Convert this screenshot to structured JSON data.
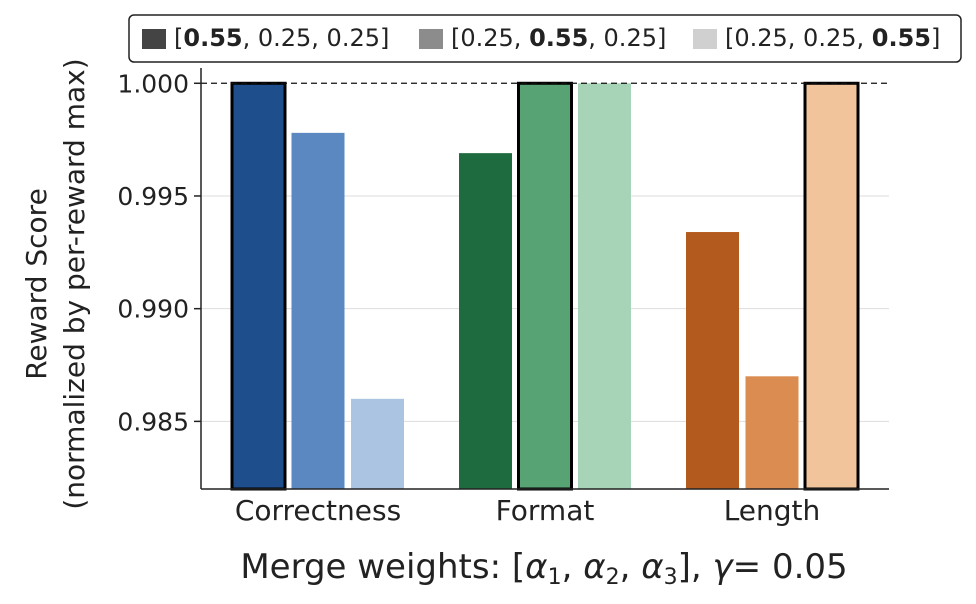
{
  "chart_data": {
    "type": "bar",
    "categories": [
      "Correctness",
      "Format",
      "Length"
    ],
    "ylabel_line1": "Reward Score",
    "ylabel_line2": "(normalized by per-reward max)",
    "xlabel_prefix": "Merge weights: [",
    "xlabel_alpha1": "α",
    "xlabel_sub1": "1",
    "xlabel_alpha2": "α",
    "xlabel_sub2": "2",
    "xlabel_alpha3": "α",
    "xlabel_sub3": "3",
    "xlabel_gamma": "γ",
    "xlabel_value": "= 0.05",
    "ylim": [
      0.982,
      1.0005
    ],
    "yticks": [
      "0.985",
      "0.990",
      "0.995",
      "1.000"
    ],
    "ytick_values": [
      0.985,
      0.99,
      0.995,
      1.0
    ],
    "reference_line": 1.0,
    "grid": "horizontal",
    "legend_position": "top",
    "series": [
      {
        "name": "[0.55, 0.25, 0.25]",
        "name_parts": [
          "[",
          "0.55",
          ", 0.25, 0.25]"
        ],
        "bold_index": 1,
        "legend_color": "#444444",
        "colors": [
          "#1f4e8c",
          "#1e6b3f",
          "#b35a1f"
        ],
        "values": [
          1.0,
          0.9969,
          0.9934
        ],
        "highlight": [
          true,
          false,
          false
        ]
      },
      {
        "name": "[0.25, 0.55, 0.25]",
        "name_parts": [
          "[0.25, ",
          "0.55",
          ", 0.25]"
        ],
        "bold_index": 1,
        "legend_color": "#8c8c8c",
        "colors": [
          "#5b88c0",
          "#58a373",
          "#db8c50"
        ],
        "values": [
          0.9978,
          1.0,
          0.987
        ],
        "highlight": [
          false,
          true,
          false
        ]
      },
      {
        "name": "[0.25, 0.25, 0.55]",
        "name_parts": [
          "[0.25, 0.25, ",
          "0.55",
          "]"
        ],
        "bold_index": 1,
        "legend_color": "#d0d0d0",
        "colors": [
          "#aac4e2",
          "#a7d3b6",
          "#f2c49c"
        ],
        "values": [
          0.986,
          1.0,
          1.0
        ],
        "highlight": [
          false,
          false,
          true
        ]
      }
    ]
  }
}
